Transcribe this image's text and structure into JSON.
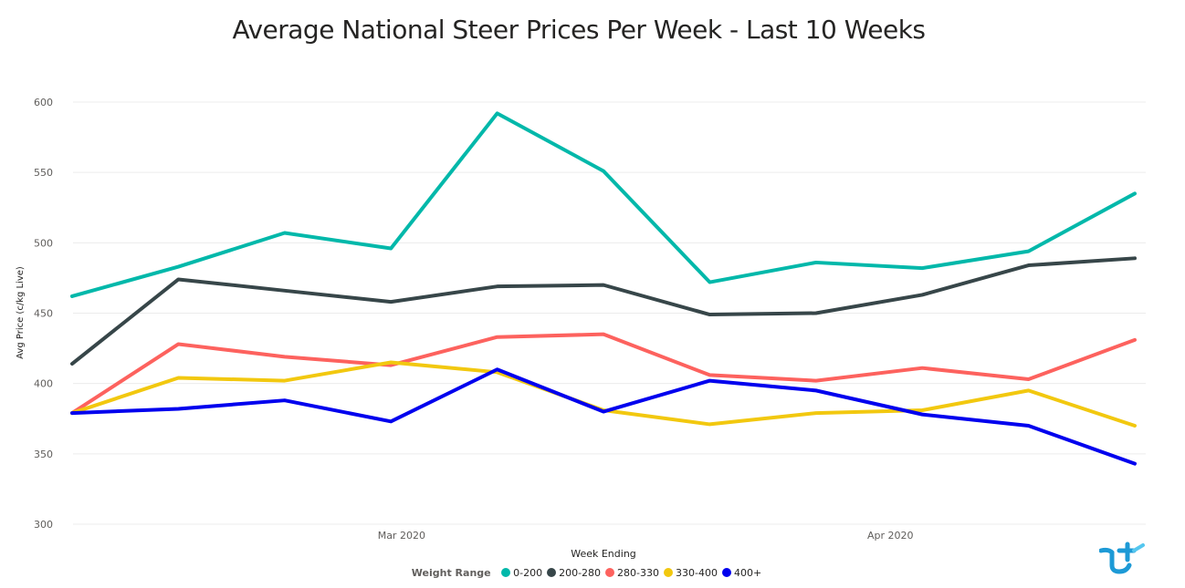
{
  "chart_data": {
    "type": "line",
    "title": "Average National Steer Prices Per Week - Last 10 Weeks",
    "xlabel": "Week Ending",
    "ylabel": "Avg Price (c/kg Live)",
    "ylim": [
      300,
      600
    ],
    "yticks": [
      300,
      350,
      400,
      450,
      500,
      550,
      600
    ],
    "xtick_labels": [
      {
        "label": "Mar 2020",
        "x": 3.1
      },
      {
        "label": "Apr 2020",
        "x": 7.7
      }
    ],
    "x": [
      0,
      1,
      2,
      3,
      4,
      5,
      6,
      7,
      8,
      9,
      10
    ],
    "grid": true,
    "legend_title": "Weight Range",
    "legend_position": "bottom",
    "series": [
      {
        "name": "0-200",
        "color": "#01b8aa",
        "values": [
          462,
          483,
          507,
          496,
          592,
          551,
          472,
          486,
          482,
          494,
          535
        ]
      },
      {
        "name": "200-280",
        "color": "#374649",
        "values": [
          414,
          474,
          466,
          458,
          469,
          470,
          449,
          450,
          463,
          484,
          489
        ]
      },
      {
        "name": "280-330",
        "color": "#fd625e",
        "values": [
          379,
          428,
          419,
          413,
          433,
          435,
          406,
          402,
          411,
          403,
          431
        ]
      },
      {
        "name": "330-400",
        "color": "#f2c80f",
        "values": [
          379,
          404,
          402,
          415,
          408,
          381,
          371,
          379,
          381,
          395,
          370
        ]
      },
      {
        "name": "400+",
        "color": "#0000ee",
        "values": [
          379,
          382,
          388,
          373,
          410,
          380,
          402,
          395,
          378,
          370,
          343
        ]
      }
    ]
  },
  "logo": {
    "name": "logo-icon"
  }
}
